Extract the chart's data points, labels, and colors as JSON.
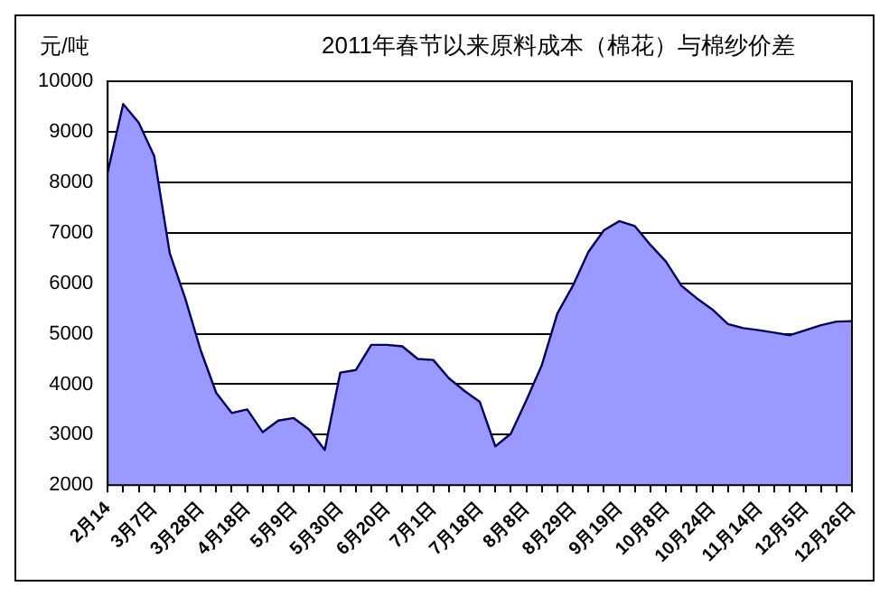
{
  "chart_data": {
    "type": "area",
    "title": "2011年春节以来原料成本（棉花）与棉纱价差",
    "ylabel": "元/吨",
    "categories": [
      "2月14",
      null,
      null,
      "3月7日",
      null,
      null,
      "3月28日",
      null,
      null,
      "4月18日",
      null,
      null,
      "5月9日",
      null,
      null,
      "5月30日",
      null,
      null,
      "6月20日",
      null,
      null,
      "7月1日",
      null,
      null,
      "7月18日",
      null,
      null,
      "8月8日",
      null,
      null,
      "8月29日",
      null,
      null,
      "9月19日",
      null,
      null,
      "10月8日",
      null,
      null,
      "10月24日",
      null,
      null,
      "11月14日",
      null,
      null,
      "12月5日",
      null,
      null,
      "12月26日"
    ],
    "series": [
      {
        "color": "#9999ff",
        "values": [
          8200,
          9550,
          9180,
          8520,
          6600,
          5700,
          4670,
          3830,
          3430,
          3500,
          3050,
          3280,
          3330,
          3100,
          2700,
          4230,
          4280,
          4780,
          4780,
          4750,
          4500,
          4480,
          4120,
          3870,
          3650,
          2770,
          3020,
          3680,
          4380,
          5400,
          5950,
          6620,
          7050,
          7230,
          7130,
          6760,
          6430,
          5950,
          5700,
          5480,
          5190,
          5110,
          5070,
          5020,
          4970,
          5070,
          5170,
          5240,
          5250
        ]
      }
    ],
    "ylim": [
      2000,
      10000
    ],
    "yticks": [
      2000,
      3000,
      4000,
      5000,
      6000,
      7000,
      8000,
      9000,
      10000
    ],
    "grid": "y",
    "legend": false
  }
}
